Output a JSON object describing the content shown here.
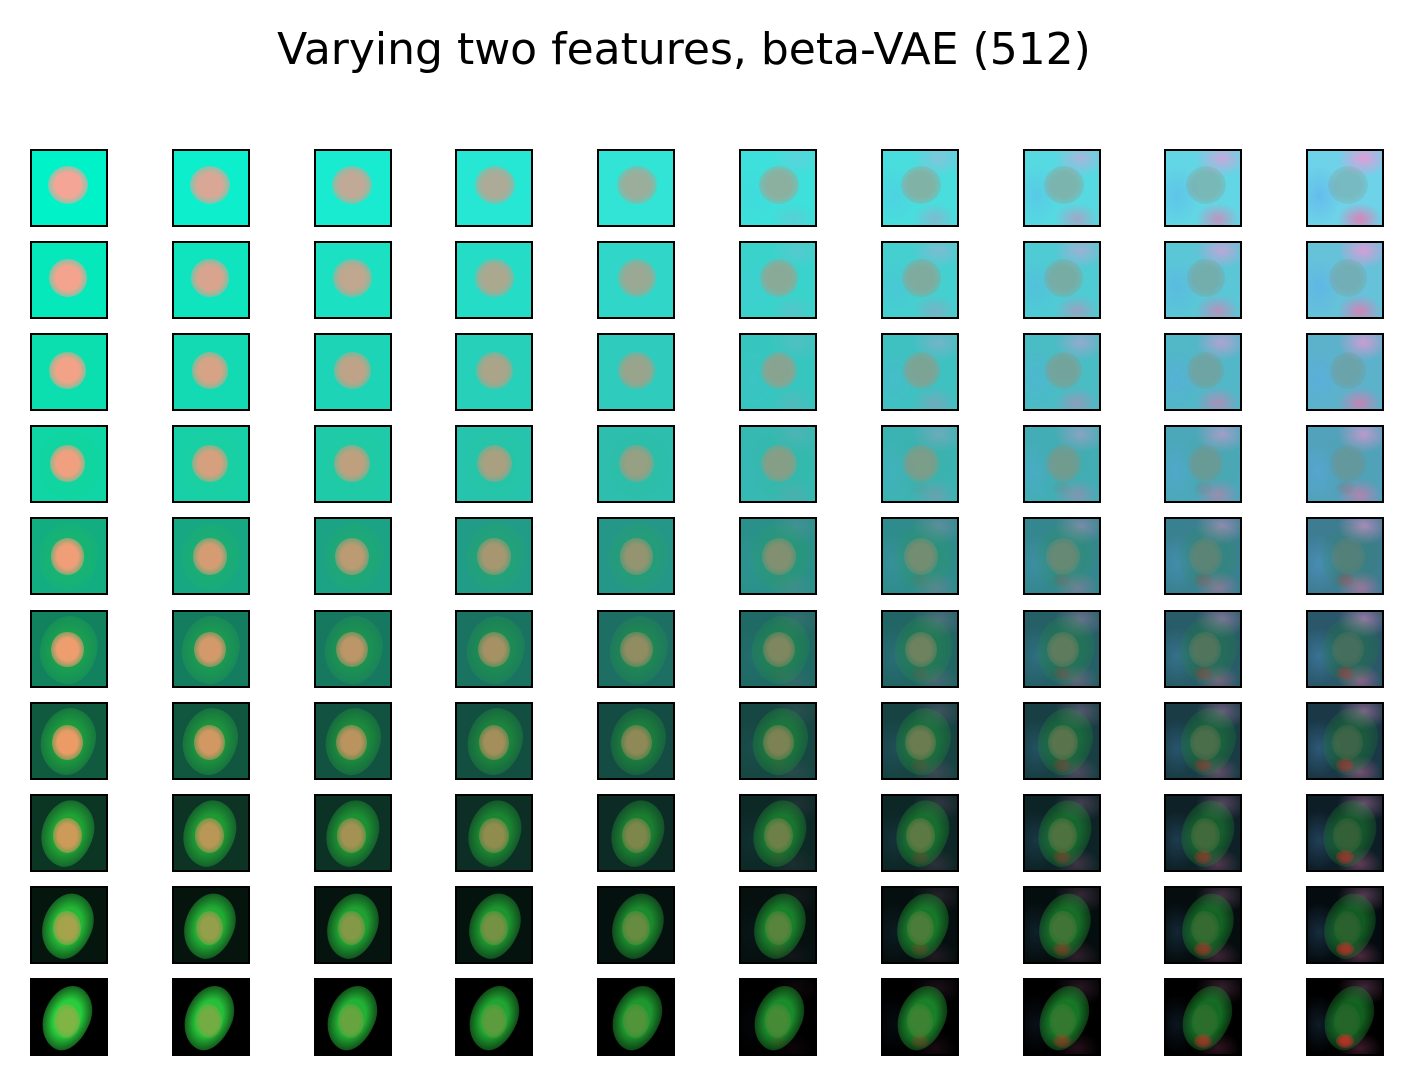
{
  "figure": {
    "title": "Varying two features, beta-VAE (512)",
    "rows": 10,
    "columns": 10,
    "palette": {
      "bright_background_start": "#00f5c8",
      "bright_background_end": "#70d8e8",
      "pink_tint": "#f0a0d8",
      "dark_background": "#000000",
      "cell_green": "#22c83a",
      "nucleus_peach": "#f2a090",
      "nucleus_orange": "#e8964a",
      "red_spot": "#e02828",
      "tile_border": "#000000"
    }
  }
}
